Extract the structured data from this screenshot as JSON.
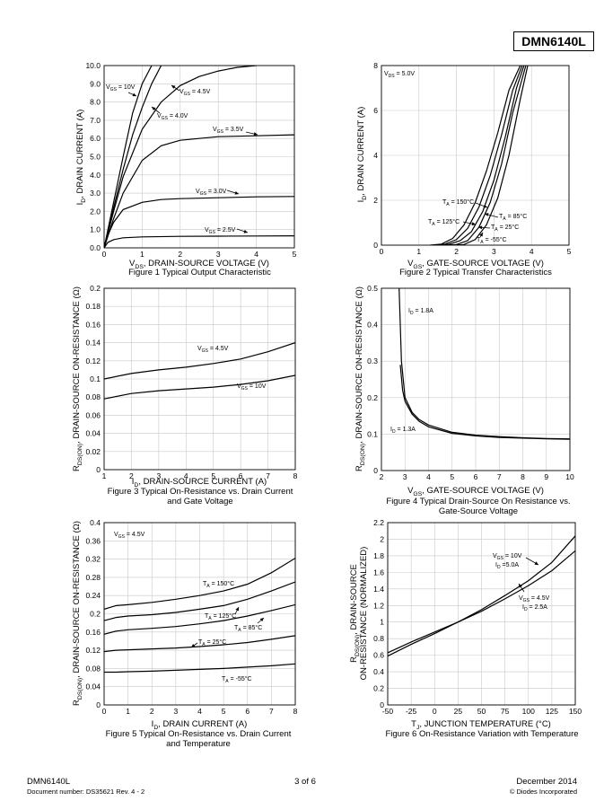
{
  "header": {
    "part_number": "DMN6140L"
  },
  "footer": {
    "part_number": "DMN6140L",
    "doc_number": "Document number: DS35621  Rev. 4 - 2",
    "page": "3 of 6",
    "date": "December 2014",
    "company": "© Diodes Incorporated"
  },
  "chart_data": [
    {
      "type": "line",
      "caption": "Figure 1 Typical Output Characteristic",
      "xlabel": "DRAIN-SOURCE VOLTAGE (V)",
      "ylabel": "DRAIN CURRENT (A)",
      "xlim": [
        0,
        5
      ],
      "ylim": [
        0,
        10
      ],
      "xticks": [
        "0",
        "1",
        "2",
        "3",
        "4",
        "5"
      ],
      "yticks": [
        "0.0",
        "1.0",
        "2.0",
        "3.0",
        "4.0",
        "5.0",
        "6.0",
        "7.0",
        "8.0",
        "9.0",
        "10.0"
      ],
      "series": [
        {
          "name": "VGS = 10V",
          "x": [
            0,
            0.25,
            0.5,
            0.75,
            1.0,
            1.25
          ],
          "y": [
            0,
            2.5,
            5.0,
            7.4,
            9.0,
            10.0
          ]
        },
        {
          "name": "VGS = 4.5V",
          "x": [
            0,
            0.25,
            0.5,
            0.75,
            1.0,
            1.25,
            1.5
          ],
          "y": [
            0,
            2.2,
            4.3,
            6.2,
            7.7,
            9.0,
            10.0
          ]
        },
        {
          "name": "VGS = 4.0V",
          "x": [
            0,
            0.25,
            0.5,
            1.0,
            1.5,
            2.0,
            2.5,
            3.0,
            3.5,
            4.0
          ],
          "y": [
            0,
            2.0,
            3.9,
            6.5,
            8.0,
            8.9,
            9.4,
            9.7,
            9.9,
            10.0
          ]
        },
        {
          "name": "VGS = 3.5V",
          "x": [
            0,
            0.25,
            0.5,
            1.0,
            1.5,
            2.0,
            2.5,
            3.0,
            4.0,
            5.0
          ],
          "y": [
            0,
            1.6,
            3.0,
            4.8,
            5.6,
            5.9,
            6.0,
            6.1,
            6.15,
            6.2
          ]
        },
        {
          "name": "VGS = 3.0V",
          "x": [
            0,
            0.1,
            0.25,
            0.5,
            1.0,
            1.5,
            2.0,
            3.0,
            4.0,
            5.0
          ],
          "y": [
            0,
            0.7,
            1.4,
            2.1,
            2.5,
            2.65,
            2.7,
            2.75,
            2.8,
            2.82
          ]
        },
        {
          "name": "VGS = 2.5V",
          "x": [
            0,
            0.1,
            0.25,
            0.5,
            1.0,
            2.0,
            3.0,
            4.0,
            5.0
          ],
          "y": [
            0,
            0.3,
            0.45,
            0.55,
            0.6,
            0.63,
            0.64,
            0.65,
            0.66
          ]
        }
      ],
      "annotations": [
        "VGS = 10V",
        "VGS = 4.5V",
        "VGS = 4.0V",
        "VGS = 3.5V",
        "VGS = 3.0V",
        "VGS = 2.5V"
      ]
    },
    {
      "type": "line",
      "caption": "Figure 2 Typical Transfer Characteristics",
      "xlabel": "GATE-SOURCE VOLTAGE (V)",
      "ylabel": "DRAIN CURRENT (A)",
      "xlim": [
        0,
        5
      ],
      "ylim": [
        0,
        8
      ],
      "xticks": [
        "0",
        "1",
        "2",
        "3",
        "4",
        "5"
      ],
      "yticks": [
        "0",
        "2",
        "4",
        "6",
        "8"
      ],
      "series": [
        {
          "name": "TA = 150°C",
          "x": [
            1.3,
            1.6,
            1.9,
            2.2,
            2.5,
            2.8,
            3.1,
            3.4,
            3.7
          ],
          "y": [
            0,
            0.05,
            0.3,
            0.9,
            1.9,
            3.3,
            5.0,
            6.9,
            8.0
          ]
        },
        {
          "name": "TA = 125°C",
          "x": [
            1.4,
            1.7,
            2.0,
            2.3,
            2.6,
            2.9,
            3.2,
            3.5,
            3.75
          ],
          "y": [
            0,
            0.05,
            0.25,
            0.75,
            1.7,
            3.1,
            4.9,
            6.9,
            8.0
          ]
        },
        {
          "name": "TA = 85°C",
          "x": [
            1.5,
            1.8,
            2.1,
            2.4,
            2.7,
            3.0,
            3.3,
            3.6,
            3.8
          ],
          "y": [
            0,
            0.04,
            0.2,
            0.6,
            1.5,
            2.9,
            4.8,
            7.0,
            8.0
          ]
        },
        {
          "name": "TA = 25°C",
          "x": [
            1.7,
            2.0,
            2.3,
            2.6,
            2.9,
            3.2,
            3.5,
            3.85
          ],
          "y": [
            0,
            0.03,
            0.2,
            0.8,
            1.9,
            3.6,
            5.9,
            8.0
          ]
        },
        {
          "name": "TA = -55°C",
          "x": [
            1.9,
            2.2,
            2.5,
            2.8,
            3.1,
            3.4,
            3.7,
            3.9
          ],
          "y": [
            0,
            0.03,
            0.25,
            0.9,
            2.1,
            4.0,
            6.5,
            8.0
          ]
        }
      ],
      "annotations": [
        "VDS = 5.0V",
        "TA = 150°C",
        "TA = 125°C",
        "TA = 85°C",
        "TA = 25°C",
        "TA = -55°C"
      ]
    },
    {
      "type": "line",
      "caption": "Figure 3 Typical On-Resistance vs. Drain Current and Gate Voltage",
      "xlabel": "DRAIN-SOURCE CURRENT (A)",
      "ylabel": "DRAIN-SOURCE ON-RESISTANCE (Ω)",
      "xlim": [
        1,
        8
      ],
      "ylim": [
        0,
        0.2
      ],
      "xticks": [
        "1",
        "2",
        "3",
        "4",
        "5",
        "6",
        "7",
        "8"
      ],
      "yticks": [
        "0",
        "0.02",
        "0.04",
        "0.06",
        "0.08",
        "0.1",
        "0.12",
        "0.14",
        "0.16",
        "0.18",
        "0.2"
      ],
      "series": [
        {
          "name": "VGS = 4.5V",
          "x": [
            1,
            2,
            3,
            4,
            5,
            6,
            7,
            8
          ],
          "y": [
            0.1,
            0.106,
            0.11,
            0.113,
            0.117,
            0.122,
            0.13,
            0.14
          ]
        },
        {
          "name": "VGS = 10V",
          "x": [
            1,
            2,
            3,
            4,
            5,
            6,
            7,
            8
          ],
          "y": [
            0.078,
            0.084,
            0.087,
            0.089,
            0.091,
            0.094,
            0.098,
            0.104
          ]
        }
      ],
      "annotations": [
        "VGS = 4.5V",
        "VGS = 10V"
      ]
    },
    {
      "type": "line",
      "caption": "Figure 4 Typical Drain-Source On Resistance vs. Gate-Source Voltage",
      "xlabel": "GATE-SOURCE VOLTAGE (V)",
      "ylabel": "DRAIN-SOURCE ON-RESISTANCE (Ω)",
      "xlim": [
        2,
        10
      ],
      "ylim": [
        0,
        0.5
      ],
      "xticks": [
        "2",
        "3",
        "4",
        "5",
        "6",
        "7",
        "8",
        "9",
        "10"
      ],
      "yticks": [
        "0",
        "0.1",
        "0.2",
        "0.3",
        "0.4",
        "0.5"
      ],
      "series": [
        {
          "name": "ID = 1.8A",
          "x": [
            2.75,
            2.85,
            3.0,
            3.3,
            3.6,
            4.0,
            5.0,
            6.0,
            7.0,
            8.0,
            9.0,
            10.0
          ],
          "y": [
            0.5,
            0.3,
            0.2,
            0.16,
            0.14,
            0.125,
            0.105,
            0.097,
            0.093,
            0.09,
            0.088,
            0.087
          ]
        },
        {
          "name": "ID = 1.3A",
          "x": [
            2.8,
            2.9,
            3.0,
            3.3,
            3.6,
            4.0,
            5.0,
            6.0,
            7.0,
            8.0,
            9.0,
            10.0
          ],
          "y": [
            0.29,
            0.22,
            0.19,
            0.155,
            0.135,
            0.12,
            0.102,
            0.095,
            0.091,
            0.089,
            0.087,
            0.086
          ]
        }
      ],
      "annotations": [
        "ID = 1.8A",
        "ID = 1.3A"
      ]
    },
    {
      "type": "line",
      "caption": "Figure 5 Typical On-Resistance vs. Drain Current and Temperature",
      "xlabel": "DRAIN CURRENT (A)",
      "ylabel": "DRAIN-SOURCE ON-RESISTANCE (Ω)",
      "xlim": [
        0,
        8
      ],
      "ylim": [
        0,
        0.4
      ],
      "xticks": [
        "0",
        "1",
        "2",
        "3",
        "4",
        "5",
        "6",
        "7",
        "8"
      ],
      "yticks": [
        "0",
        "0.04",
        "0.08",
        "0.12",
        "0.16",
        "0.2",
        "0.24",
        "0.28",
        "0.32",
        "0.36",
        "0.4"
      ],
      "series": [
        {
          "name": "TA = 150°C",
          "x": [
            0,
            0.5,
            1,
            2,
            3,
            4,
            5,
            6,
            7,
            8
          ],
          "y": [
            0.21,
            0.218,
            0.22,
            0.225,
            0.232,
            0.24,
            0.25,
            0.265,
            0.29,
            0.322
          ]
        },
        {
          "name": "TA = 125°C",
          "x": [
            0,
            0.5,
            1,
            2,
            3,
            4,
            5,
            6,
            7,
            8
          ],
          "y": [
            0.185,
            0.192,
            0.195,
            0.198,
            0.203,
            0.21,
            0.218,
            0.232,
            0.25,
            0.27
          ]
        },
        {
          "name": "TA = 85°C",
          "x": [
            0,
            0.5,
            1,
            2,
            3,
            4,
            5,
            6,
            7,
            8
          ],
          "y": [
            0.155,
            0.162,
            0.165,
            0.168,
            0.172,
            0.178,
            0.185,
            0.195,
            0.207,
            0.22
          ]
        },
        {
          "name": "TA = 25°C",
          "x": [
            0,
            0.5,
            1,
            2,
            3,
            4,
            5,
            6,
            7,
            8
          ],
          "y": [
            0.117,
            0.12,
            0.121,
            0.123,
            0.125,
            0.128,
            0.132,
            0.137,
            0.144,
            0.152
          ]
        },
        {
          "name": "TA = -55°C",
          "x": [
            0,
            0.5,
            1,
            2,
            3,
            4,
            5,
            6,
            7,
            8
          ],
          "y": [
            0.072,
            0.072,
            0.073,
            0.074,
            0.076,
            0.078,
            0.08,
            0.083,
            0.086,
            0.09
          ]
        }
      ],
      "annotations": [
        "VGS = 4.5V",
        "TA = 150°C",
        "TA = 125°C",
        "TA = 85°C",
        "TA = 25°C",
        "TA = -55°C"
      ]
    },
    {
      "type": "line",
      "caption": "Figure 6 On-Resistance Variation with Temperature",
      "xlabel": "JUNCTION TEMPERATURE (°C)",
      "ylabel": "DRAIN-SOURCE ON-RESISTANCE (NORMALIZED)",
      "xlim": [
        -50,
        150
      ],
      "ylim": [
        0,
        2.2
      ],
      "xticks": [
        "-50",
        "-25",
        "0",
        "25",
        "50",
        "75",
        "100",
        "125",
        "150"
      ],
      "yticks": [
        "0",
        "0.2",
        "0.4",
        "0.6",
        "0.8",
        "1",
        "1.2",
        "1.4",
        "1.6",
        "1.8",
        "2",
        "2.2"
      ],
      "series": [
        {
          "name": "VGS = 10V, ID = 5.0A",
          "x": [
            -50,
            -25,
            0,
            25,
            50,
            75,
            100,
            125,
            150
          ],
          "y": [
            0.59,
            0.73,
            0.86,
            1.0,
            1.15,
            1.32,
            1.5,
            1.72,
            2.04
          ]
        },
        {
          "name": "VGS = 4.5V, ID = 2.5A",
          "x": [
            -50,
            -25,
            0,
            25,
            50,
            75,
            100,
            125,
            150
          ],
          "y": [
            0.63,
            0.76,
            0.88,
            1.0,
            1.13,
            1.28,
            1.44,
            1.62,
            1.86
          ]
        }
      ],
      "annotations": [
        "VGS = 10V",
        "ID = 5.0A",
        "VGS = 4.5V",
        "ID = 2.5A"
      ]
    }
  ]
}
